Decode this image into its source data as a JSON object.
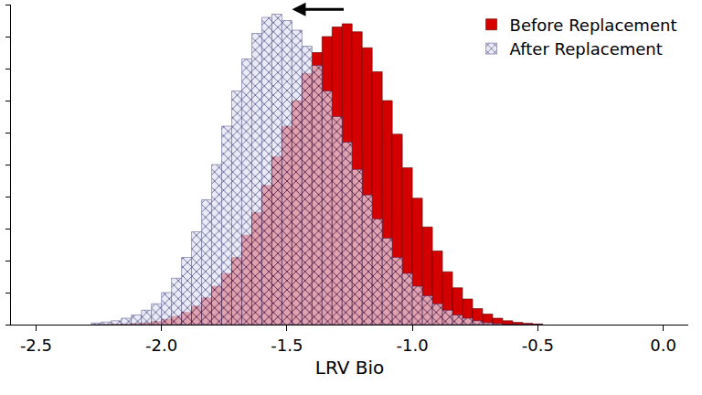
{
  "chart_data": {
    "type": "histogram",
    "x_label": "LRV Bio",
    "bins": [
      -2.28,
      -2.24,
      -2.2,
      -2.16,
      -2.12,
      -2.08,
      -2.04,
      -2.0,
      -1.96,
      -1.92,
      -1.88,
      -1.84,
      -1.8,
      -1.76,
      -1.72,
      -1.68,
      -1.64,
      -1.6,
      -1.56,
      -1.52,
      -1.48,
      -1.44,
      -1.4,
      -1.36,
      -1.32,
      -1.28,
      -1.24,
      -1.2,
      -1.16,
      -1.12,
      -1.08,
      -1.04,
      -1.0,
      -0.96,
      -0.92,
      -0.88,
      -0.84,
      -0.8,
      -0.76,
      -0.72,
      -0.68,
      -0.64,
      -0.6,
      -0.56,
      -0.52,
      -0.48
    ],
    "series": [
      {
        "name": "Before Replacement",
        "color": "#d40000",
        "marker": "solid",
        "values": [
          0,
          0,
          0.01,
          0.02,
          0.04,
          0.06,
          0.1,
          0.17,
          0.26,
          0.39,
          0.58,
          0.84,
          1.2,
          1.6,
          2.1,
          2.8,
          3.5,
          4.35,
          5.25,
          6.2,
          7.0,
          7.85,
          8.5,
          9.0,
          9.3,
          9.4,
          9.15,
          8.65,
          7.9,
          7.0,
          5.95,
          4.9,
          3.95,
          3.05,
          2.3,
          1.65,
          1.15,
          0.8,
          0.5,
          0.33,
          0.2,
          0.12,
          0.07,
          0.04,
          0.02
        ]
      },
      {
        "name": "After Replacement",
        "color": "#e4e4f4",
        "marker": "crosshatch",
        "values": [
          0.05,
          0.08,
          0.12,
          0.2,
          0.3,
          0.45,
          0.65,
          1.0,
          1.45,
          2.1,
          2.9,
          3.9,
          5.0,
          6.2,
          7.3,
          8.3,
          9.1,
          9.6,
          9.7,
          9.5,
          9.2,
          8.7,
          8.1,
          7.3,
          6.5,
          5.7,
          4.85,
          4.05,
          3.3,
          2.7,
          2.1,
          1.6,
          1.2,
          0.9,
          0.65,
          0.45,
          0.3,
          0.2,
          0.12,
          0.06,
          0.03,
          0,
          0,
          0,
          0
        ]
      }
    ],
    "xlim": [
      -2.6,
      0.1
    ],
    "xticks": [
      {
        "value": -2.5,
        "label": "-2.5"
      },
      {
        "value": -2,
        "label": "-2.0"
      },
      {
        "value": -1.5,
        "label": "-1.5"
      },
      {
        "value": -1,
        "label": "-1.0"
      },
      {
        "value": -0.5,
        "label": "-0.5"
      },
      {
        "value": 0,
        "label": "0.0"
      }
    ],
    "ylim": [
      0,
      10
    ],
    "yticks": [
      0,
      1,
      2,
      3,
      4,
      5,
      6,
      7,
      8,
      9,
      10
    ],
    "tick_labels": "x",
    "legend": "upper right",
    "grid": false
  }
}
